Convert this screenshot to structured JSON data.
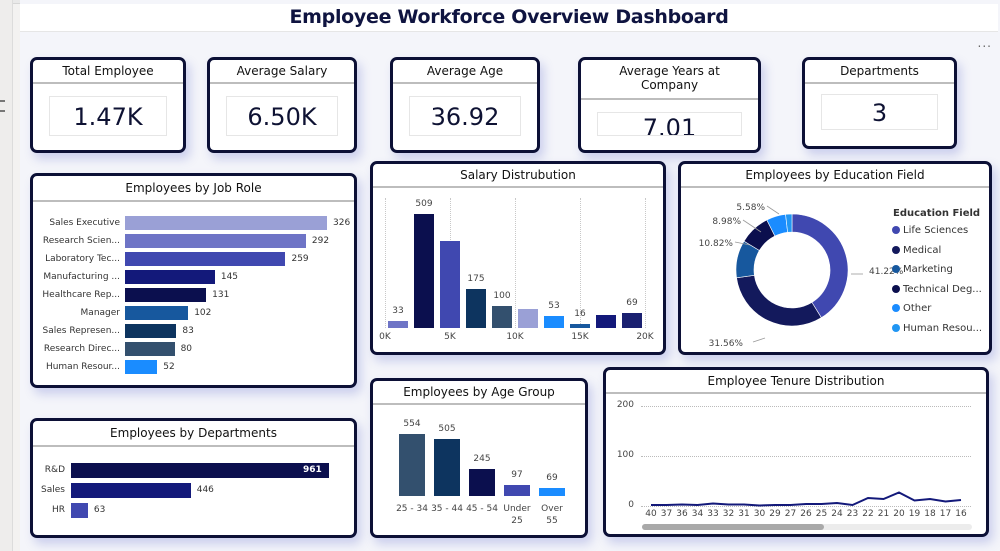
{
  "header": {
    "title": "Employee Workforce Overview Dashboard",
    "more_options": "..."
  },
  "kpis": [
    {
      "label": "Total Employee",
      "value": "1.47K"
    },
    {
      "label": "Average Salary",
      "value": "6.50K"
    },
    {
      "label": "Average Age",
      "value": "36.92"
    },
    {
      "label": "Average Years at Company",
      "value": "7.01"
    },
    {
      "label": "Departments",
      "value": "3"
    }
  ],
  "colors": {
    "card_border": "#0c1036",
    "title_text": "#0f1440"
  },
  "chart_data": [
    {
      "id": "job_role",
      "type": "bar",
      "orientation": "horizontal",
      "title": "Employees by Job Role",
      "categories": [
        "Sales Executive",
        "Research Scien...",
        "Laboratory Tec...",
        "Manufacturing ...",
        "Healthcare Rep...",
        "Manager",
        "Sales Represen...",
        "Research Direc...",
        "Human Resour..."
      ],
      "values": [
        326,
        292,
        259,
        145,
        131,
        102,
        83,
        80,
        52
      ],
      "colors": [
        "#9aa0d6",
        "#6e74c6",
        "#4048b0",
        "#13197a",
        "#0b0f4e",
        "#17589e",
        "#0d345f",
        "#33506e",
        "#1a8cff"
      ],
      "xlim": [
        0,
        326
      ]
    },
    {
      "id": "salary",
      "type": "bar",
      "title": "Salary Distrubution",
      "x_bins_start": [
        1000,
        3000,
        5000,
        7000,
        9000,
        11000,
        13000,
        15000,
        17000,
        19000
      ],
      "values": [
        33,
        509,
        390,
        175,
        100,
        85,
        53,
        16,
        60,
        69
      ],
      "value_labels": [
        "33",
        "509",
        "",
        "175",
        "100",
        "",
        "53",
        "16",
        "",
        "69"
      ],
      "colors": [
        "#6e74c6",
        "#0b0f4e",
        "#4048b0",
        "#0d345f",
        "#33506e",
        "#9aa0d6",
        "#1a8cff",
        "#17589e",
        "#13197a",
        "#1a2070"
      ],
      "xticks": [
        "0K",
        "5K",
        "10K",
        "15K",
        "20K"
      ],
      "xlim": [
        0,
        20000
      ],
      "ylim": [
        0,
        560
      ],
      "grid": "vertical-dotted"
    },
    {
      "id": "education",
      "type": "pie",
      "donut": true,
      "title": "Employees by Education Field",
      "legend_title": "Education Field",
      "legend_position": "right",
      "labels": [
        "Life Sciences",
        "Medical",
        "Marketing",
        "Technical Deg...",
        "Other",
        "Human Resou..."
      ],
      "values": [
        41.22,
        31.56,
        10.82,
        8.98,
        5.58,
        1.84
      ],
      "value_labels": [
        "41.22%",
        "31.56%",
        "10.82%",
        "8.98%",
        "5.58%",
        ""
      ],
      "colors": [
        "#4048b0",
        "#13195c",
        "#17589e",
        "#0b0f4e",
        "#1a8cff",
        "#2196f3"
      ]
    },
    {
      "id": "departments",
      "type": "bar",
      "orientation": "horizontal",
      "title": "Employees by Departments",
      "categories": [
        "R&D",
        "Sales",
        "HR"
      ],
      "values": [
        961,
        446,
        63
      ],
      "colors": [
        "#0b0f4e",
        "#13197a",
        "#4048b0"
      ],
      "xlim": [
        0,
        961
      ]
    },
    {
      "id": "age_group",
      "type": "bar",
      "title": "Employees by Age Group",
      "categories": [
        "25 - 34",
        "35 - 44",
        "45 - 54",
        "Under 25",
        "Over 55"
      ],
      "category_lines": [
        [
          "25 - 34"
        ],
        [
          "35 - 44"
        ],
        [
          "45 - 54"
        ],
        [
          "Under",
          "25"
        ],
        [
          "Over",
          "55"
        ]
      ],
      "values": [
        554,
        505,
        245,
        97,
        69
      ],
      "colors": [
        "#33506e",
        "#0d345f",
        "#0b0f4e",
        "#4048b0",
        "#1a8cff"
      ],
      "ylim": [
        0,
        554
      ]
    },
    {
      "id": "tenure",
      "type": "line",
      "title": "Employee Tenure Distribution",
      "x": [
        "40",
        "37",
        "36",
        "34",
        "33",
        "32",
        "31",
        "30",
        "29",
        "27",
        "26",
        "25",
        "24",
        "23",
        "22",
        "21",
        "20",
        "19",
        "18",
        "17",
        "16"
      ],
      "values": [
        2,
        2,
        3,
        2,
        5,
        3,
        3,
        1,
        2,
        2,
        4,
        4,
        6,
        2,
        16,
        14,
        27,
        11,
        14,
        9,
        12
      ],
      "yticks": [
        "0",
        "100",
        "200"
      ],
      "ylim": [
        0,
        200
      ],
      "grid": "horizontal-dotted",
      "color": "#13197a",
      "scrollbar_position": 0.55
    }
  ]
}
